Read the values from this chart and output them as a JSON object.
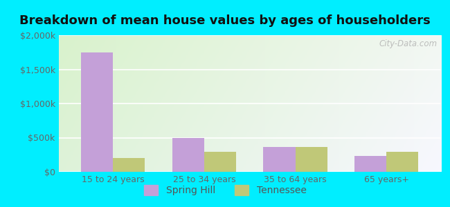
{
  "title": "Breakdown of mean house values by ages of householders",
  "categories": [
    "15 to 24 years",
    "25 to 34 years",
    "35 to 64 years",
    "65 years+"
  ],
  "spring_hill_values": [
    1750000,
    490000,
    360000,
    230000
  ],
  "tennessee_values": [
    200000,
    290000,
    360000,
    290000
  ],
  "spring_hill_color": "#c4a0d8",
  "tennessee_color": "#c0c878",
  "ylim": [
    0,
    2000000
  ],
  "yticks": [
    0,
    500000,
    1000000,
    1500000,
    2000000
  ],
  "ytick_labels": [
    "$0",
    "$500k",
    "$1,000k",
    "$1,500k",
    "$2,000k"
  ],
  "legend_labels": [
    "Spring Hill",
    "Tennessee"
  ],
  "background_outer": "#00eeff",
  "watermark": "City-Data.com",
  "bar_width": 0.35,
  "title_fontsize": 13,
  "axis_fontsize": 9,
  "legend_fontsize": 10,
  "tick_color": "#666666",
  "title_color": "#111111"
}
